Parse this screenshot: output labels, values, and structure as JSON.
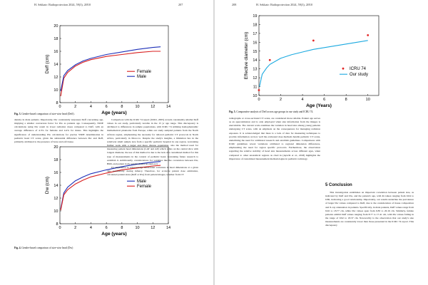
{
  "left_page": {
    "running_head": "H. Sekkatr: Radioprotection 2024, 59(3), 2Ø10",
    "page_number": "207",
    "fig3_caption_label": "Fig. 3.",
    "fig3_caption_text": "Gender-based comparison of size-wise head (Deff).",
    "fig4_caption_label": "Fig. 4.",
    "fig4_caption_text": "Gender-based comparison of size-wise head (Dw)",
    "paragraphs": [
      "density in male patients. Importantly, Dw consistently surpasses Deff concerning age, implying a smaller conversion factor for Dw as patients age. Consequently, SSDE calculations using Dw result in lower radiation doses compared to Deff, with an average difference of 4.3% for females and 4.4% for males. This highlights the significance of understanding Dw calculations for precise SSDE determination in pediatric head CT scans, given the substantial difference between Dw and Deff, primarily attributed to the presence of bone and soft tissue.",
      "Comparison with the ICRU 74 report (ICRU, 2005) reveals consistently smaller Deff values in our study, particularly notable in the 15 yr age range. This discrepancy is attributed to differences in sample populations, with ICRU 74 utilizing homophantomic mathematical phantoms from Europe, while our study sampled patients from the North African region, emphasizing the necessity for tailored pediatric CT protocols in North Africa, particularly in Morocco. Despite the study's insights, a limitation lies in the relatively small sample size from a specific pediatric hospital in one region, warranting further work with a larger and more diverse population, also the method used for measuring patient head dimensions (LAT and AP) which relies on the central slice with longest diameter, the use of this method is due to the lack of a customized method for this type of measurements in the context of pediatric head, warranting future research to establish it. Additionally, considerations for variables like the correlation between Dw, BMI, and patient body weight should be explored.",
      "It's imperative to acknowledge substantial variations in head dimensions at a given age, particularly during infancy. Therefore, for accurate patient dose estimation, calculated patient sizes (Deff or Dw) from patient images, whether from CT"
    ],
    "chart1": {
      "y_label": "Deff (cm)",
      "x_label": "Age (years)",
      "x_ticks": [
        "0",
        "2",
        "4",
        "6",
        "8",
        "10",
        "12",
        "14"
      ],
      "y_ticks": [
        "8",
        "10",
        "12",
        "14",
        "16",
        "18",
        "20"
      ]
    },
    "chart2": {
      "y_label": "Dw (cm)",
      "x_label": "Age (years)",
      "x_ticks": [
        "0",
        "2",
        "4",
        "6",
        "8",
        "10",
        "12",
        "14"
      ],
      "y_ticks": [
        "8",
        "10",
        "12",
        "14",
        "16",
        "18",
        "20"
      ]
    }
  },
  "right_page": {
    "running_head": "H. Sekkatr: Radioprotection 2024, 59(3), 2Ø10",
    "page_number": "208",
    "fig5_caption_label": "Fig. 5.",
    "fig5_caption_text": "Comparative analysis of Deff across age groups in our study and ICRU 74.",
    "paragraphs": [
      "radiographs or cross-sectional CT scans, are considered more reliable. Patient age serves as an approximation and is only employed when size information from the images is unavailable. The current work examines the variation in head size among young patients undergoing CT scans, with an emphasis on the consequences for managing radiation exposure. It is acknowledged that there is a lack of data for measuring techniques to provide information on how well the evaluated dose methods handle pediatric CT scans, underlining the need for additional research and establish guidelines. Comparisons with ICRU guidelines reveal variations attributed to regional dimension differences, emphasizing the need for region specific protocols. Furthermore, the observation regarding the relative stability of head size measurements across different ages, when compared to other anatomical regions as cited in (Ayachi et al., 2018) highlights the importance of customized measurement methodologies in pediatric radiology."
    ],
    "conclusion_heading": "5  Conclusion",
    "conclusion_paragraph": "This investigation establishes an important correlation between patient size, as indicated by Deff and Dw, and the patient's age, with R-values ranging from 0.64 to 0.86, indicating a good relationship. Importantly, our results underline the prevalence of larger Dw values compared to Deff, due to the consideration of tissue composition and X-ray attenuation in patients. Specifically, in male patients, Deff values range from 9.02 to 18.77 cm, while Dw values span from 9.83 to 20.16 cm. Similarly, female patients exhibit Deff values ranging from 8.77 to 17.41 cm, with Dw values falling in the range of 9.92 to 18.37 cm. Noteworthy is the observation that our study's size measurements are consistently lower than those presented in the ICRU 74 report. This discrepancy",
    "chart3": {
      "y_label": "Effective diameter (cm)",
      "x_label": "Age (Years)",
      "x_ticks": [
        "0",
        "2",
        "4",
        "6",
        "8",
        "10"
      ],
      "y_ticks": [
        "10",
        "11",
        "12",
        "13",
        "14",
        "15",
        "16",
        "17",
        "18",
        "19"
      ]
    }
  },
  "colors": {
    "female_curve": "#d81e1e",
    "male_curve": "#1c2fb8",
    "study_curve": "#1aa9e0",
    "icru_points": "#e32626"
  },
  "chart_data": [
    {
      "type": "line",
      "title": "",
      "xlabel": "Age (years)",
      "ylabel": "Deff (cm)",
      "xlim": [
        0,
        14
      ],
      "ylim": [
        8,
        20
      ],
      "grid": false,
      "legend_position": "center-right",
      "series": [
        {
          "name": "Female",
          "color": "#d81e1e",
          "x": [
            0.1,
            0.5,
            1,
            2,
            3,
            4,
            6,
            8,
            10,
            12,
            13
          ],
          "y": [
            9.0,
            11.8,
            12.7,
            13.7,
            14.3,
            14.7,
            15.2,
            15.5,
            15.8,
            16.0,
            16.0
          ]
        },
        {
          "name": "Male",
          "color": "#1c2fb8",
          "x": [
            0.1,
            0.5,
            1,
            2,
            3,
            4,
            6,
            8,
            10,
            12,
            13
          ],
          "y": [
            9.8,
            12.2,
            13.0,
            13.9,
            14.5,
            14.9,
            15.5,
            15.9,
            16.3,
            16.6,
            16.7
          ]
        }
      ]
    },
    {
      "type": "line",
      "title": "",
      "xlabel": "Age (years)",
      "ylabel": "Dw (cm)",
      "xlim": [
        0,
        14
      ],
      "ylim": [
        8,
        20
      ],
      "grid": false,
      "legend_position": "center-right",
      "series": [
        {
          "name": "Male",
          "color": "#1c2fb8",
          "x": [
            0.1,
            0.5,
            1,
            2,
            3,
            4,
            6,
            8,
            10,
            12,
            13
          ],
          "y": [
            10.3,
            12.8,
            13.7,
            14.7,
            15.3,
            15.8,
            16.4,
            16.9,
            17.3,
            17.6,
            17.7
          ]
        },
        {
          "name": "Female",
          "color": "#d81e1e",
          "x": [
            0.1,
            0.5,
            1,
            2,
            3,
            4,
            6,
            8,
            10,
            12,
            13
          ],
          "y": [
            10.1,
            12.5,
            13.3,
            14.2,
            14.8,
            15.3,
            15.9,
            16.4,
            16.7,
            17.0,
            17.1
          ]
        }
      ]
    },
    {
      "type": "scatter",
      "title": "",
      "xlabel": "Age (Years)",
      "ylabel": "Effective diameter (cm)",
      "xlim": [
        0,
        11
      ],
      "ylim": [
        10,
        19
      ],
      "grid": false,
      "legend_position": "center-right",
      "series": [
        {
          "name": "ICRU 74",
          "color": "#e32626",
          "kind": "points",
          "x": [
            0,
            1,
            5,
            10
          ],
          "y": [
            10.6,
            14.0,
            16.2,
            16.8
          ]
        },
        {
          "name": "Our study",
          "color": "#1aa9e0",
          "kind": "line",
          "x": [
            0.05,
            0.3,
            0.7,
            1,
            2,
            3,
            4,
            5,
            6,
            7,
            8,
            9,
            10
          ],
          "y": [
            11.0,
            12.4,
            13.1,
            13.5,
            14.2,
            14.6,
            14.9,
            15.2,
            15.4,
            15.6,
            15.8,
            16.0,
            16.2
          ]
        }
      ]
    }
  ]
}
